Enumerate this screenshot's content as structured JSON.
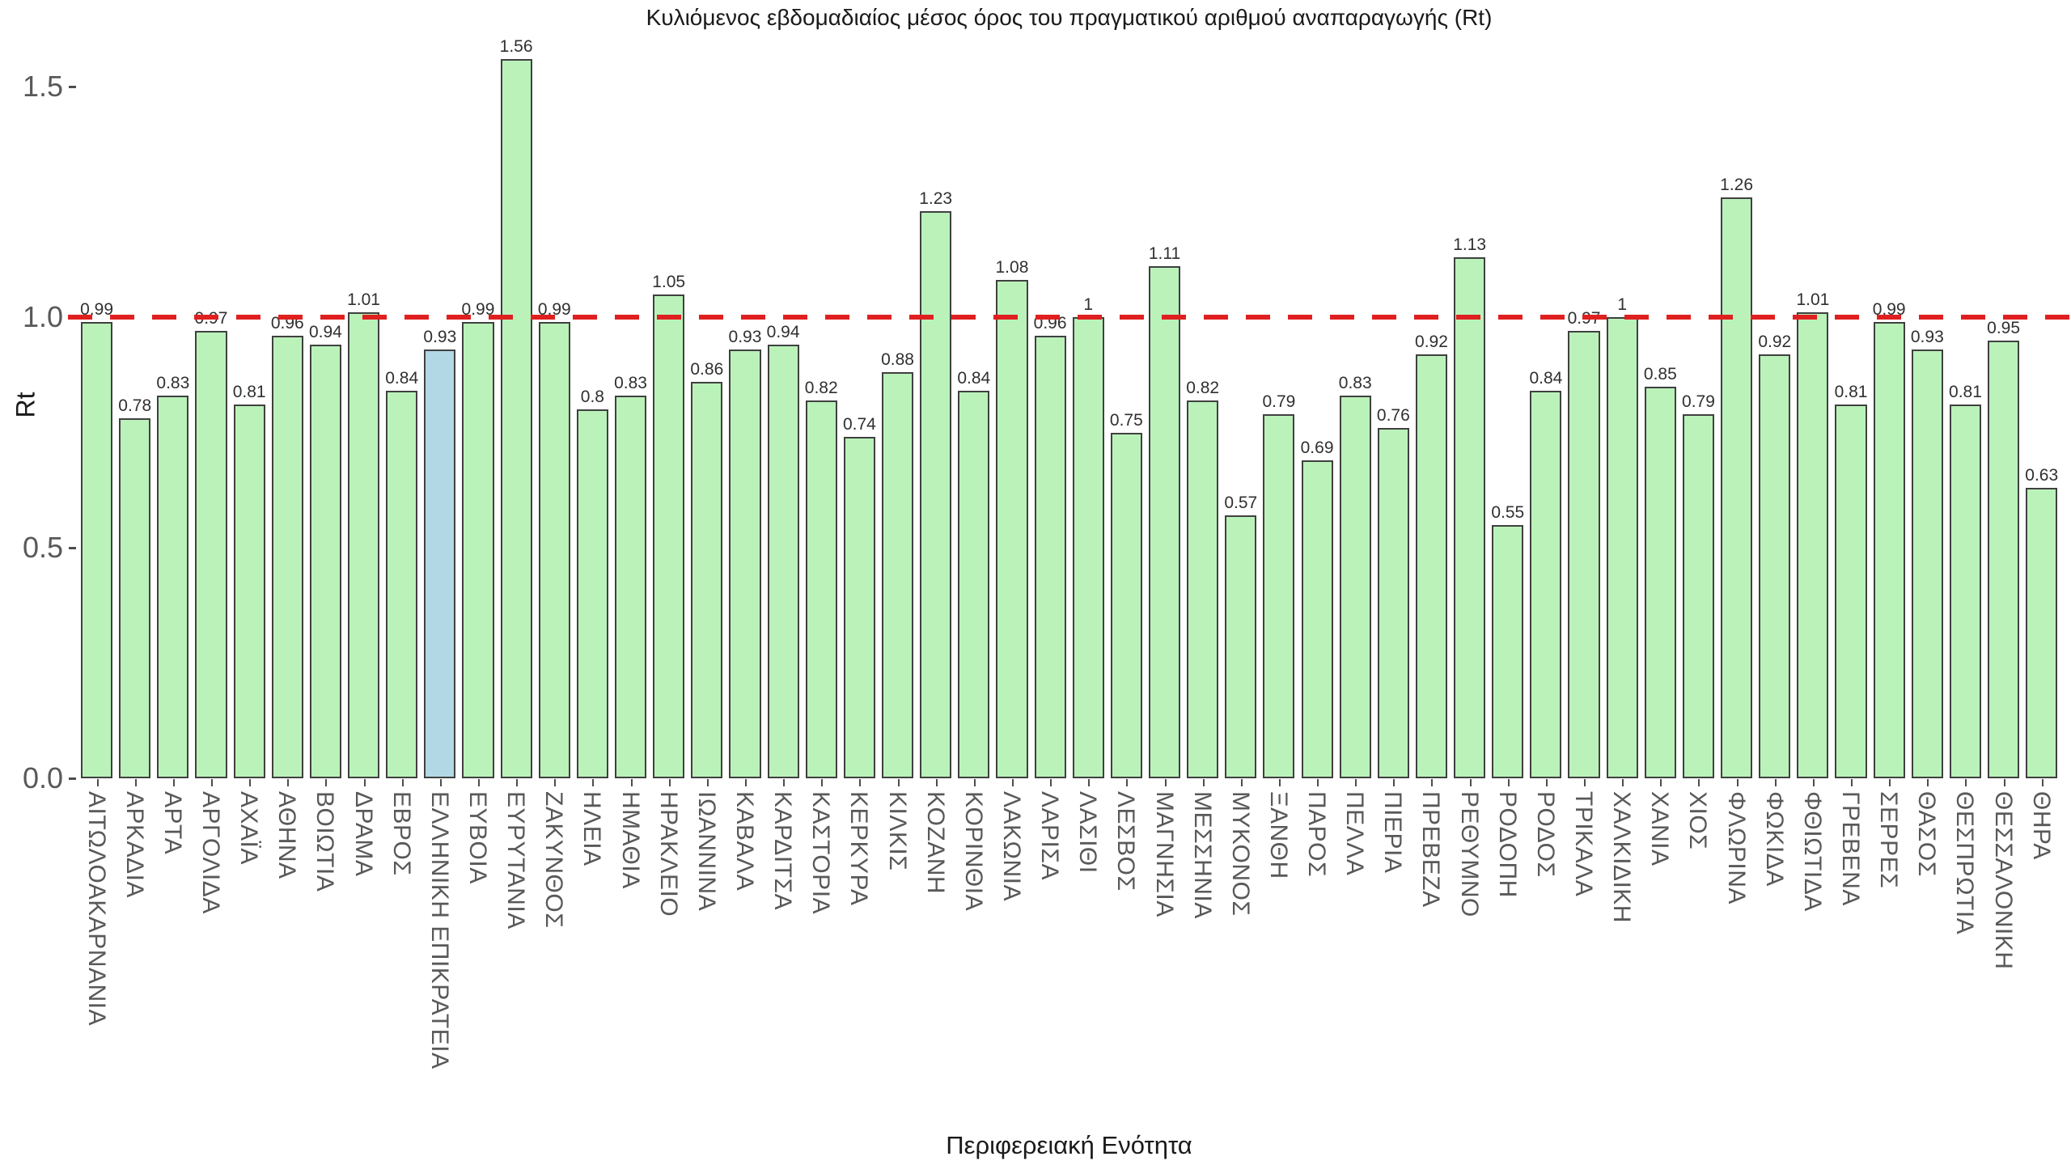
{
  "chart_data": {
    "type": "bar",
    "title": "Κυλιόμενος εβδομαδιαίος μέσος όρος του πραγματικού αριθμού αναπαραγωγής (Rt)",
    "xlabel": "Περιφερειακή Ενότητα",
    "ylabel": "Rt",
    "ylim": [
      0,
      1.6
    ],
    "yticks": [
      0.0,
      0.5,
      1.0,
      1.5
    ],
    "ytick_labels": [
      "0.0",
      "0.5",
      "1.0",
      "1.5"
    ],
    "grid": false,
    "legend": false,
    "bar_color": "#baf2ba",
    "bar_border_color": "#404040",
    "highlight_category": "ΕΛΛΗΝΙΚΗ ΕΠΙΚΡΑΤΕΙΑ",
    "highlight_bar_color": "#b2d8e6",
    "reference_line": {
      "y": 1.0,
      "color": "#e02020",
      "style": "dashed"
    },
    "categories": [
      "ΑΙΤΩΛΟΑΚΑΡΝΑΝΙΑ",
      "ΑΡΚΑΔΙΑ",
      "ΑΡΤΑ",
      "ΑΡΓΟΛΙΔΑ",
      "ΑΧΑΪΑ",
      "ΑΘΗΝΑ",
      "ΒΟΙΩΤΙΑ",
      "ΔΡΑΜΑ",
      "ΕΒΡΟΣ",
      "ΕΛΛΗΝΙΚΗ ΕΠΙΚΡΑΤΕΙΑ",
      "ΕΥΒΟΙΑ",
      "ΕΥΡΥΤΑΝΙΑ",
      "ΖΑΚΥΝΘΟΣ",
      "ΗΛΕΙΑ",
      "ΗΜΑΘΙΑ",
      "ΗΡΑΚΛΕΙΟ",
      "ΙΩΑΝΝΙΝΑ",
      "ΚΑΒΑΛΑ",
      "ΚΑΡΔΙΤΣΑ",
      "ΚΑΣΤΟΡΙΑ",
      "ΚΕΡΚΥΡΑ",
      "ΚΙΛΚΙΣ",
      "ΚΟΖΑΝΗ",
      "ΚΟΡΙΝΘΙΑ",
      "ΛΑΚΩΝΙΑ",
      "ΛΑΡΙΣΑ",
      "ΛΑΣΙΘΙ",
      "ΛΕΣΒΟΣ",
      "ΜΑΓΝΗΣΙΑ",
      "ΜΕΣΣΗΝΙΑ",
      "ΜΥΚΟΝΟΣ",
      "ΞΑΝΘΗ",
      "ΠΑΡΟΣ",
      "ΠΕΛΛΑ",
      "ΠΙΕΡΙΑ",
      "ΠΡΕΒΕΖΑ",
      "ΡΕΘΥΜΝΟ",
      "ΡΟΔΟΠΗ",
      "ΡΟΔΟΣ",
      "ΤΡΙΚΑΛΑ",
      "ΧΑΛΚΙΔΙΚΗ",
      "ΧΑΝΙΑ",
      "ΧΙΟΣ",
      "ΦΛΩΡΙΝΑ",
      "ΦΩΚΙΔΑ",
      "ΦΘΙΩΤΙΔΑ",
      "ΓΡΕΒΕΝΑ",
      "ΣΕΡΡΕΣ",
      "ΘΑΣΟΣ",
      "ΘΕΣΠΡΩΤΙΑ",
      "ΘΕΣΣΑΛΟΝΙΚΗ",
      "ΘΗΡΑ"
    ],
    "values": [
      0.99,
      0.78,
      0.83,
      0.97,
      0.81,
      0.96,
      0.94,
      1.01,
      0.84,
      0.93,
      0.99,
      1.56,
      0.99,
      0.8,
      0.83,
      1.05,
      0.86,
      0.93,
      0.94,
      0.82,
      0.74,
      0.88,
      1.23,
      0.84,
      1.08,
      0.96,
      1,
      0.75,
      1.11,
      0.82,
      0.57,
      0.79,
      0.69,
      0.83,
      0.76,
      0.92,
      1.13,
      0.55,
      0.84,
      0.97,
      1,
      0.85,
      0.79,
      1.26,
      0.92,
      1.01,
      0.81,
      0.99,
      0.93,
      0.81,
      0.95,
      0.63
    ]
  }
}
